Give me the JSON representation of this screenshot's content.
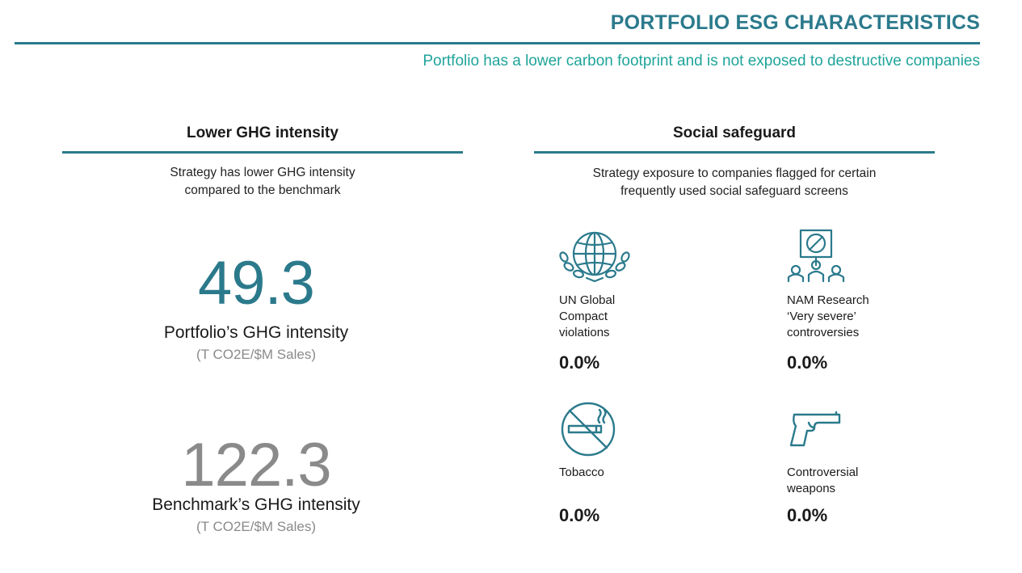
{
  "header": {
    "title": "PORTFOLIO ESG CHARACTERISTICS",
    "subtitle": "Portfolio has a lower carbon footprint and is not exposed to destructive companies"
  },
  "left_section": {
    "heading": "Lower GHG intensity",
    "description_line1": "Strategy has lower GHG intensity",
    "description_line2": "compared to  the benchmark",
    "portfolio": {
      "value": "49.3",
      "label": "Portfolio’s GHG intensity",
      "unit": "(T CO2E/$M Sales)"
    },
    "benchmark": {
      "value": "122.3",
      "label": "Benchmark’s GHG intensity",
      "unit": "(T CO2E/$M Sales)"
    }
  },
  "right_section": {
    "heading": "Social safeguard",
    "description_line1": "Strategy exposure to companies flagged for certain",
    "description_line2": "frequently used social safeguard screens",
    "tiles": [
      {
        "label": "UN Global\nCompact\nviolations",
        "value": "0.0%",
        "icon": "globe-chains-icon"
      },
      {
        "label": "NAM Research\n‘Very severe’\ncontroversies",
        "value": "0.0%",
        "icon": "protest-sign-icon"
      },
      {
        "label": "Tobacco",
        "value": "0.0%",
        "icon": "no-smoking-icon"
      },
      {
        "label": "Controversial\nweapons",
        "value": "0.0%",
        "icon": "handgun-icon"
      }
    ]
  },
  "colors": {
    "accent_dark_teal": "#2b7a8c",
    "accent_green_teal": "#1fa49a",
    "benchmark_grey": "#8a8a8a"
  }
}
